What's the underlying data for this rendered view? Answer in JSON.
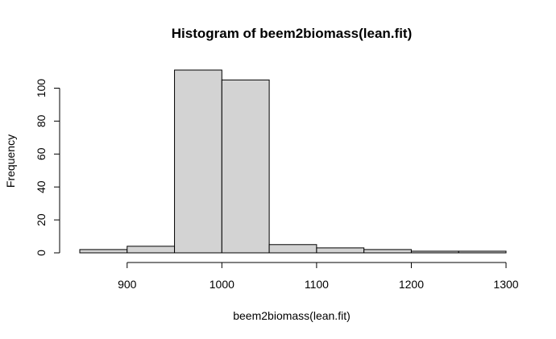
{
  "chart_data": {
    "type": "bar",
    "title": "Histogram of beem2biomass(lean.fit)",
    "xlabel": "beem2biomass(lean.fit)",
    "ylabel": "Frequency",
    "bin_edges": [
      850,
      900,
      950,
      1000,
      1050,
      1100,
      1150,
      1200,
      1250,
      1300
    ],
    "values": [
      2,
      4,
      111,
      105,
      5,
      3,
      2,
      1,
      1
    ],
    "xlim": [
      850,
      1300
    ],
    "ylim": [
      0,
      111
    ],
    "x_ticks": [
      900,
      1000,
      1100,
      1200,
      1300
    ],
    "y_ticks": [
      0,
      20,
      40,
      60,
      80,
      100
    ],
    "bar_color": "#d3d3d3",
    "grid": false,
    "legend": "none"
  }
}
